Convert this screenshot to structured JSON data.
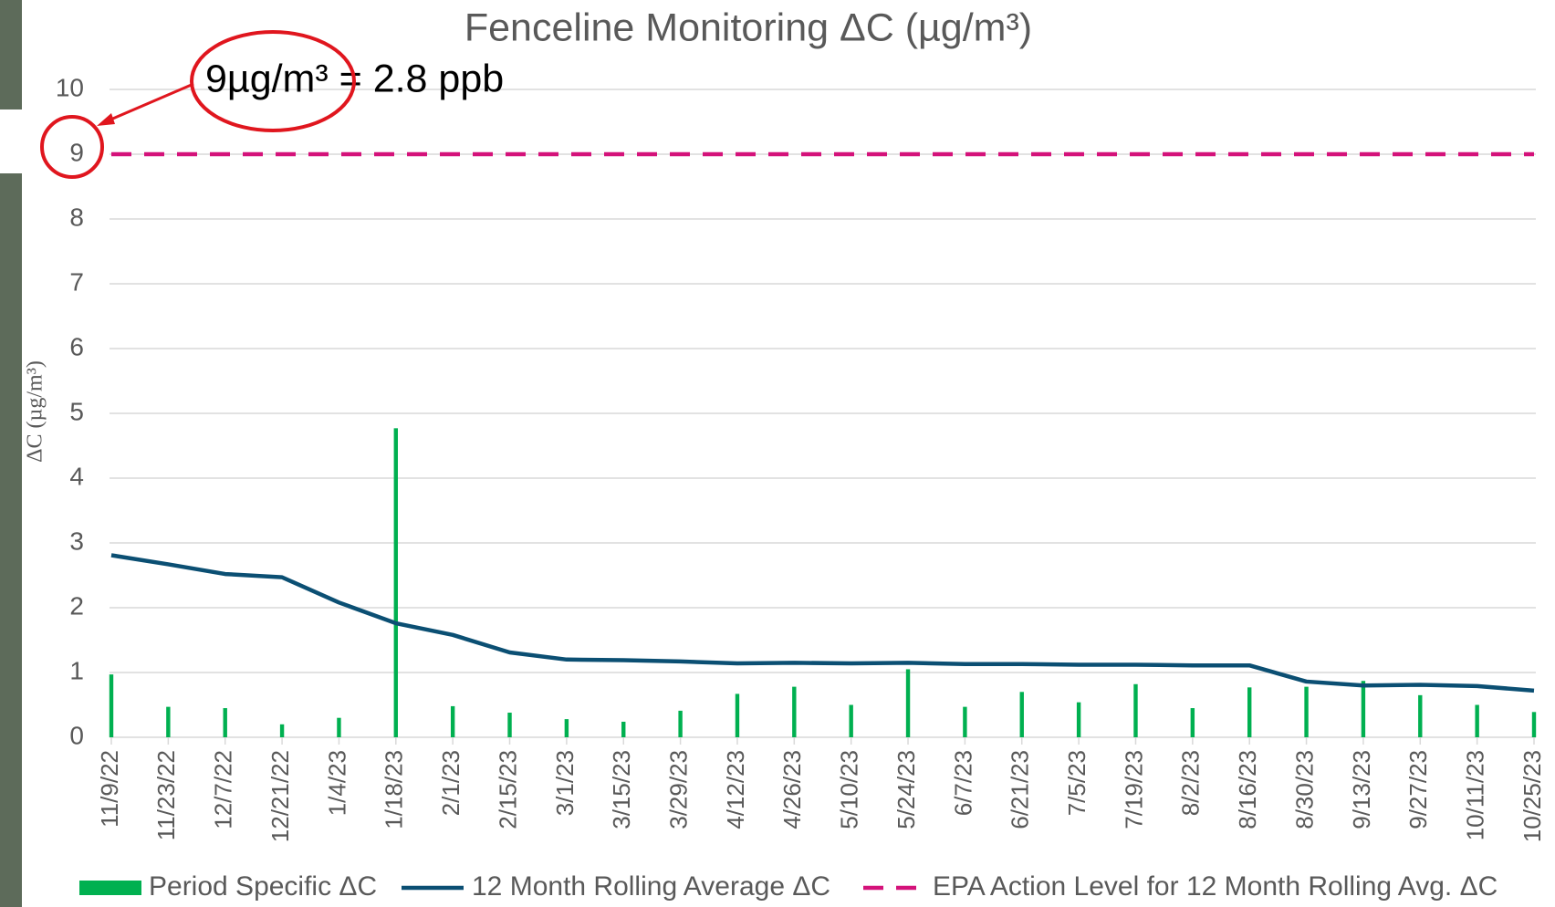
{
  "chart_data": {
    "type": "bar",
    "title": "Fenceline Monitoring ΔC (µg/m³)",
    "y_label": "ΔC (µg/m³)",
    "annotation": "9µg/m³ = 2.8 ppb",
    "categories": [
      "11/9/22",
      "11/23/22",
      "12/7/22",
      "12/21/22",
      "1/4/23",
      "1/18/23",
      "2/1/23",
      "2/15/23",
      "3/1/23",
      "3/15/23",
      "3/29/23",
      "4/12/23",
      "4/26/23",
      "5/10/23",
      "5/24/23",
      "6/7/23",
      "6/21/23",
      "7/5/23",
      "7/19/23",
      "8/2/23",
      "8/16/23",
      "8/30/23",
      "9/13/23",
      "9/27/23",
      "10/11/23",
      "10/25/23"
    ],
    "series": [
      {
        "name": "Period Specific ΔC",
        "type": "bar",
        "color": "#00b050",
        "values": [
          0.97,
          0.47,
          0.45,
          0.2,
          0.3,
          4.77,
          0.48,
          0.38,
          0.28,
          0.24,
          0.41,
          0.67,
          0.78,
          0.5,
          1.05,
          0.47,
          0.7,
          0.54,
          0.82,
          0.45,
          0.77,
          0.78,
          0.87,
          0.65,
          0.5,
          0.39
        ]
      },
      {
        "name": "12 Month Rolling Average ΔC",
        "type": "line",
        "color": "#0b4f73",
        "values": [
          2.81,
          2.67,
          2.52,
          2.47,
          2.08,
          1.76,
          1.58,
          1.31,
          1.2,
          1.19,
          1.17,
          1.14,
          1.15,
          1.14,
          1.15,
          1.13,
          1.13,
          1.12,
          1.12,
          1.11,
          1.11,
          0.86,
          0.8,
          0.81,
          0.79,
          0.72
        ]
      },
      {
        "name": "EPA Action Level for 12 Month Rolling Avg. ΔC",
        "type": "dashed",
        "color": "#d4127a",
        "values": [
          9,
          9,
          9,
          9,
          9,
          9,
          9,
          9,
          9,
          9,
          9,
          9,
          9,
          9,
          9,
          9,
          9,
          9,
          9,
          9,
          9,
          9,
          9,
          9,
          9,
          9
        ]
      }
    ],
    "ylim": [
      0,
      10
    ],
    "yticks": [
      0,
      1,
      2,
      3,
      4,
      5,
      6,
      7,
      8,
      9,
      10
    ],
    "grid": true
  }
}
